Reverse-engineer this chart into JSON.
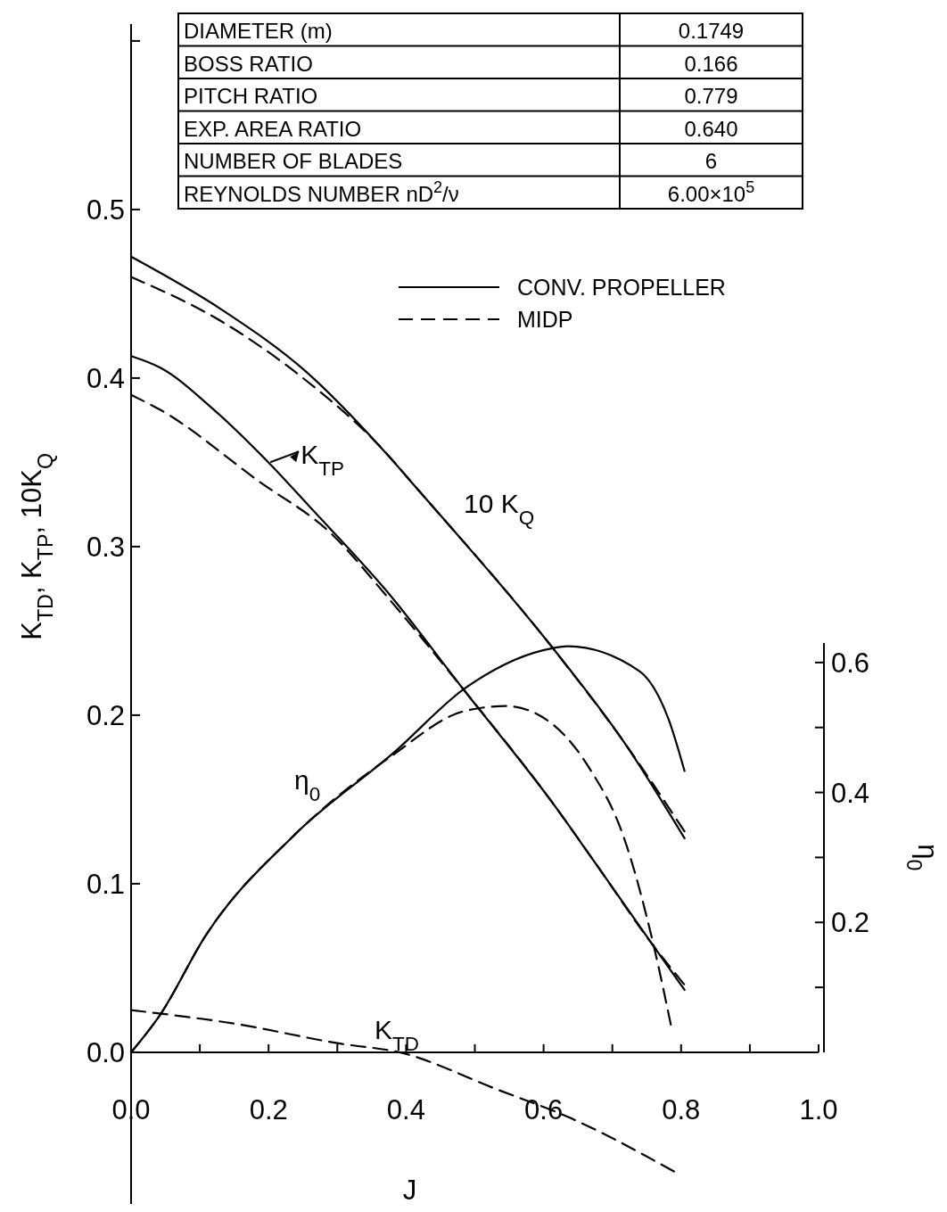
{
  "chart_data": {
    "type": "line",
    "xlabel": "J",
    "ylabel": "K$_{TD}$, K$_{TP}$, 10K$_{Q}$",
    "y2label": "η$_{0}$",
    "xlim": [
      0,
      1.0
    ],
    "xticks": [
      {
        "value": 0,
        "label": "0.0"
      },
      {
        "value": 0.1,
        "label": null
      },
      0.2,
      {
        "value": 0.3,
        "label": null
      },
      0.4,
      {
        "value": 0.5,
        "label": null
      },
      0.6,
      {
        "value": 0.7,
        "label": null
      },
      0.8,
      {
        "value": 0.9,
        "label": null
      },
      {
        "value": 1.0,
        "label": "1.0"
      }
    ],
    "ylim": [
      -0.09,
      0.61
    ],
    "yticks": [
      {
        "value": 0,
        "label": "0.0"
      },
      0.1,
      0.2,
      0.3,
      0.4,
      0.5,
      {
        "value": 0.6,
        "label": null
      }
    ],
    "y2lim": [
      0,
      0.63
    ],
    "y2ticks": [
      {
        "value": 0.1,
        "label": null
      },
      0.2,
      {
        "value": 0.3,
        "label": null
      },
      0.4,
      {
        "value": 0.5,
        "label": null
      },
      0.6
    ],
    "legend": "top right",
    "series": [
      {
        "name": "CONV. PROPELLER",
        "color": "#000000",
        "line_style": "solid",
        "x": [
          0,
          0.043,
          0.121,
          0.202,
          0.259,
          0.371,
          0.484,
          0.613,
          0.674,
          0.76,
          0.805
        ],
        "values": [
          0.413,
          0.406,
          0.381,
          0.349,
          0.324,
          0.274,
          0.215,
          0.148,
          0.113,
          0.063,
          0.037
        ]
      },
      {
        "name": "MIDP",
        "color": "#000000",
        "line_style": "dashed",
        "x": [
          0,
          0.043,
          0.185,
          0.293,
          0.371,
          0.484,
          0.613,
          0.674,
          0.76,
          0.805
        ],
        "values": [
          0.39,
          0.381,
          0.339,
          0.307,
          0.271,
          0.215,
          0.148,
          0.113,
          0.063,
          0.04
        ]
      },
      {
        "color": "#000000",
        "line_style": "solid",
        "x": [
          0,
          0.134,
          0.254,
          0.363,
          0.419,
          0.613,
          0.717,
          0.805
        ],
        "values": [
          0.472,
          0.44,
          0.404,
          0.359,
          0.333,
          0.24,
          0.184,
          0.127
        ]
      },
      {
        "color": "#000000",
        "line_style": "dashed",
        "x": [
          0,
          0.134,
          0.25,
          0.363,
          0.419,
          0.613,
          0.717,
          0.805
        ],
        "values": [
          0.46,
          0.433,
          0.4,
          0.359,
          0.333,
          0.24,
          0.184,
          0.131
        ]
      },
      {
        "color": "#000000",
        "line_style": "solid",
        "axis": "y2",
        "x": [
          0,
          0.043,
          0.108,
          0.237,
          0.384,
          0.484,
          0.613,
          0.635,
          0.739,
          0.782,
          0.805
        ],
        "values": [
          0,
          0.059,
          0.179,
          0.334,
          0.463,
          0.559,
          0.622,
          0.625,
          0.587,
          0.512,
          0.433
        ]
      },
      {
        "color": "#000000",
        "line_style": "dashed",
        "axis": "y2",
        "x": [
          0,
          0.043,
          0.108,
          0.237,
          0.38,
          0.484,
          0.545,
          0.588,
          0.665,
          0.717,
          0.76,
          0.786
        ],
        "values": [
          0,
          0.059,
          0.179,
          0.334,
          0.457,
          0.525,
          0.533,
          0.522,
          0.44,
          0.33,
          0.165,
          0.038
        ]
      },
      {
        "color": "#000000",
        "line_style": "dashed",
        "x": [
          0,
          0.15,
          0.306,
          0.39,
          0.532,
          0.639,
          0.791
        ],
        "values": [
          0.025,
          0.017,
          0.005,
          0,
          -0.022,
          -0.039,
          -0.071
        ]
      }
    ],
    "annotations": [
      "DIAMETER (m)",
      "0.1749",
      "BOSS RATIO",
      "0.166",
      "PITCH RATIO",
      "0.779",
      "EXP. AREA RATIO",
      "0.640",
      "NUMBER OF BLADES",
      "6",
      "REYNOLDS NUMBER nD$^{2}$/ν",
      "6.00×10$^{5}$",
      {
        "text": "K$_{TP}$",
        "x": 0.2,
        "y": 0.349
      },
      "10 K$_{Q}$",
      "η$_{0}$",
      "K$_{TD}$"
    ]
  }
}
